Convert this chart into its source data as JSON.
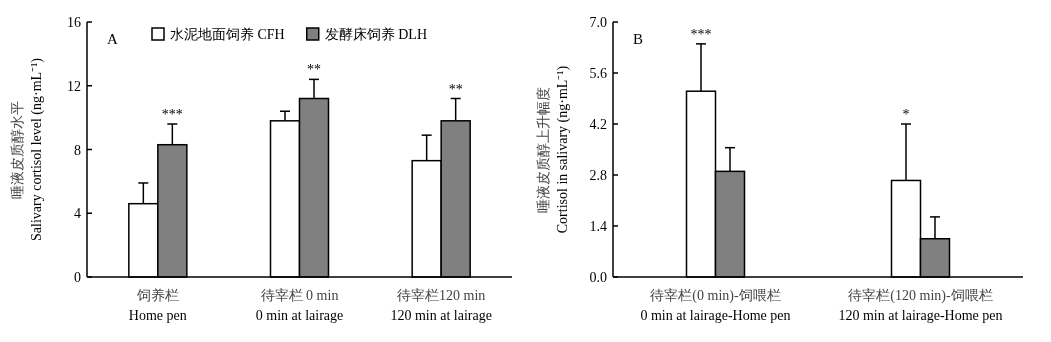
{
  "chart_data": [
    {
      "type": "bar",
      "title": "A",
      "categories": [
        "饲养栏\nHome pen",
        "待宰栏 0 min\n0 min at lairage",
        "待宰栏120 min\n120 min at lairage"
      ],
      "series": [
        {
          "name": "水泥地面饲养 CFH",
          "color": "#ffffff",
          "values": [
            4.6,
            9.8,
            7.3
          ],
          "errors": [
            1.3,
            0.6,
            1.6
          ]
        },
        {
          "name": "发酵床饲养 DLH",
          "color": "#808080",
          "values": [
            8.3,
            11.2,
            9.8
          ],
          "errors": [
            1.3,
            1.2,
            1.4
          ]
        }
      ],
      "ylabel": "唾液皮质醇水平\nSalivary cortisol level (ng·mL⁻¹)",
      "ylim": [
        0,
        16
      ],
      "yticks": [
        0,
        4,
        8,
        12,
        16
      ],
      "legend": "top",
      "grid": false,
      "annotations": [
        "***",
        "**",
        "**"
      ]
    },
    {
      "type": "bar",
      "title": "B",
      "categories": [
        "待宰栏(0 min)-饲喂栏\n0 min at lairage-Home pen",
        "待宰栏(120 min)-饲喂栏\n120 min at lairage-Home pen"
      ],
      "series": [
        {
          "color": "#ffffff",
          "values": [
            5.1,
            2.65
          ],
          "errors": [
            1.3,
            1.55
          ]
        },
        {
          "color": "#808080",
          "values": [
            2.9,
            1.05
          ],
          "errors": [
            0.65,
            0.6
          ]
        }
      ],
      "ylabel": "唾液皮质醇上升幅度\nCortisol in salivary (ng·mL⁻¹)",
      "ylim": [
        0,
        7
      ],
      "yticks": [
        {
          "value": 0,
          "label": "0.0"
        },
        {
          "value": 1.4,
          "label": "1.4"
        },
        {
          "value": 2.8,
          "label": "2.8"
        },
        {
          "value": 4.2,
          "label": "4.2"
        },
        {
          "value": 5.6,
          "label": "5.6"
        },
        {
          "value": 7,
          "label": "7.0"
        }
      ],
      "legend": false,
      "grid": false,
      "annotations": [
        "***",
        "*"
      ]
    }
  ]
}
